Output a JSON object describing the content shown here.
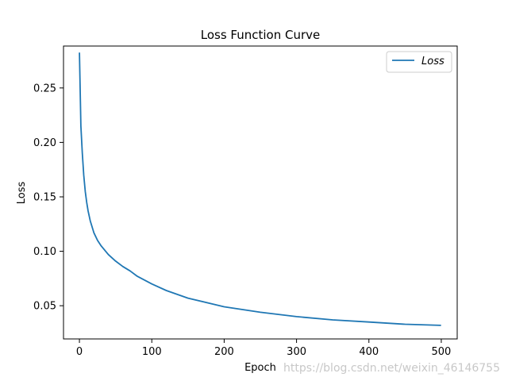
{
  "chart_data": {
    "type": "line",
    "title": "Loss Function Curve",
    "xlabel": "Epoch",
    "ylabel": "Loss",
    "xlim": [
      -22,
      522
    ],
    "ylim": [
      0.0195,
      0.2885
    ],
    "xticks": [
      0,
      100,
      200,
      300,
      400,
      500
    ],
    "yticks": [
      0.05,
      0.1,
      0.15,
      0.2,
      0.25
    ],
    "ytick_labels": [
      "0.05",
      "0.10",
      "0.15",
      "0.20",
      "0.25"
    ],
    "grid": false,
    "legend": {
      "placement": "top-right",
      "entries": [
        "Loss"
      ]
    },
    "series": [
      {
        "name": "Loss",
        "color": "#1f77b4",
        "x": [
          0,
          2,
          4,
          6,
          8,
          10,
          12,
          15,
          20,
          25,
          30,
          40,
          50,
          60,
          70,
          80,
          100,
          120,
          150,
          200,
          250,
          300,
          350,
          400,
          450,
          499
        ],
        "y": [
          0.282,
          0.215,
          0.19,
          0.17,
          0.155,
          0.145,
          0.137,
          0.128,
          0.117,
          0.11,
          0.105,
          0.097,
          0.091,
          0.086,
          0.082,
          0.077,
          0.07,
          0.064,
          0.057,
          0.049,
          0.044,
          0.04,
          0.037,
          0.035,
          0.033,
          0.032
        ]
      }
    ]
  },
  "watermark": "https://blog.csdn.net/weixin_46146755"
}
